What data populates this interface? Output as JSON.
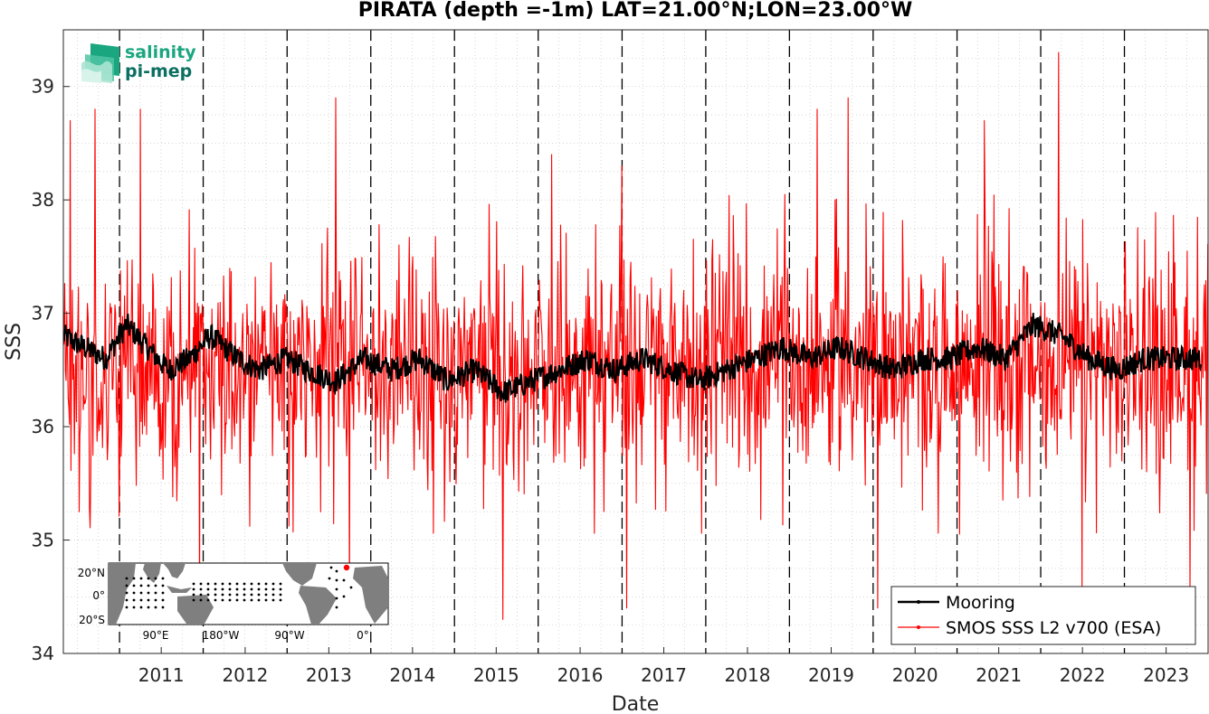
{
  "chart_data": {
    "type": "line",
    "title": "PIRATA (depth =-1m) LAT=21.00°N;LON=23.00°W",
    "xlabel": "Date",
    "ylabel": "SSS",
    "xlim": [
      "2010-05-01",
      "2024-01-01"
    ],
    "ylim": [
      34,
      39.5
    ],
    "x_ticks": [
      "2011",
      "2012",
      "2013",
      "2014",
      "2015",
      "2016",
      "2017",
      "2018",
      "2019",
      "2020",
      "2021",
      "2022",
      "2023"
    ],
    "x_tick_dates": [
      "2011-01-01",
      "2012-01-01",
      "2013-01-01",
      "2014-01-01",
      "2015-01-01",
      "2016-01-01",
      "2017-01-01",
      "2018-01-01",
      "2019-01-01",
      "2020-01-01",
      "2021-01-01",
      "2022-01-01",
      "2023-01-01"
    ],
    "y_ticks": [
      34,
      35,
      36,
      37,
      38,
      39
    ],
    "grid": true,
    "year_boundary_lines": "dashed",
    "legend_position": "bottom-right",
    "series": [
      {
        "name": "Mooring",
        "color": "#000000",
        "x": [
          "2010-05-01",
          "2010-08-01",
          "2010-11-01",
          "2011-02-01",
          "2011-05-01",
          "2011-08-01",
          "2011-11-01",
          "2012-02-01",
          "2012-06-01",
          "2012-09-01",
          "2013-01-01",
          "2013-04-01",
          "2013-08-01",
          "2013-12-01",
          "2014-04-01",
          "2014-08-01",
          "2014-12-01",
          "2015-04-01",
          "2015-08-01",
          "2015-12-01",
          "2016-04-01",
          "2016-08-01",
          "2016-12-01",
          "2017-04-01",
          "2017-08-01",
          "2017-12-01",
          "2018-04-01",
          "2018-08-01",
          "2018-12-01",
          "2019-04-01",
          "2019-08-01",
          "2019-12-01",
          "2020-04-01",
          "2020-08-01",
          "2020-12-01",
          "2021-04-01",
          "2021-08-01",
          "2021-12-01",
          "2022-04-01",
          "2022-08-01",
          "2022-12-01",
          "2023-04-01",
          "2023-08-01",
          "2023-12-01"
        ],
        "y": [
          36.8,
          36.7,
          36.6,
          36.9,
          36.7,
          36.5,
          36.6,
          36.8,
          36.6,
          36.5,
          36.6,
          36.5,
          36.4,
          36.6,
          36.5,
          36.6,
          36.4,
          36.5,
          36.3,
          36.4,
          36.5,
          36.6,
          36.5,
          36.6,
          36.5,
          36.4,
          36.5,
          36.6,
          36.7,
          36.6,
          36.7,
          36.6,
          36.5,
          36.6,
          36.6,
          36.7,
          36.6,
          36.9,
          36.8,
          36.6,
          36.5,
          36.6,
          36.6,
          36.6
        ]
      },
      {
        "name": "SMOS SSS L2 v700 (ESA)",
        "color": "#ff0000",
        "x_range": [
          "2010-05-01",
          "2024-01-01"
        ],
        "sampling": "~3-day",
        "mean": 36.55,
        "typical_range": [
          35.0,
          38.5
        ],
        "extremes": [
          {
            "date": "2010-06-01",
            "value": 38.7
          },
          {
            "date": "2010-09-15",
            "value": 38.8
          },
          {
            "date": "2011-04-01",
            "value": 38.8
          },
          {
            "date": "2011-12-15",
            "value": 34.4
          },
          {
            "date": "2013-08-01",
            "value": 38.9
          },
          {
            "date": "2013-10-01",
            "value": 34.5
          },
          {
            "date": "2015-08-01",
            "value": 34.3
          },
          {
            "date": "2016-03-01",
            "value": 38.4
          },
          {
            "date": "2017-01-01",
            "value": 38.3
          },
          {
            "date": "2017-01-20",
            "value": 34.4
          },
          {
            "date": "2019-05-01",
            "value": 38.8
          },
          {
            "date": "2019-09-15",
            "value": 38.9
          },
          {
            "date": "2020-01-20",
            "value": 34.4
          },
          {
            "date": "2021-05-01",
            "value": 38.7
          },
          {
            "date": "2022-03-20",
            "value": 39.3
          },
          {
            "date": "2022-07-01",
            "value": 34.5
          },
          {
            "date": "2023-10-15",
            "value": 34.5
          }
        ]
      }
    ]
  },
  "logo": {
    "line1": "salinity",
    "line2": "pi-mep"
  },
  "inset_map": {
    "lat_labels": [
      "20°N",
      "0°",
      "20°S"
    ],
    "lon_labels": [
      "90°E",
      "180°W",
      "90°W",
      "0°"
    ],
    "colors": {
      "land": "#7f7f7f",
      "ocean": "#ffffff",
      "stations": "#000000",
      "highlight": "#ff0000"
    }
  }
}
